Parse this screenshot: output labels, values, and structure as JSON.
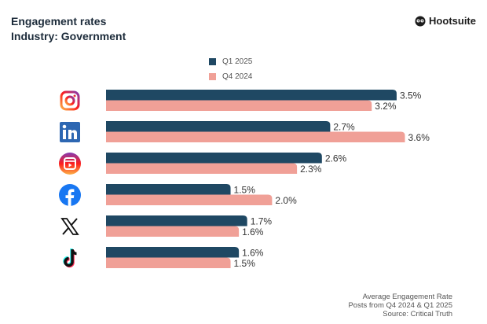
{
  "header": {
    "title": "Engagement rates",
    "subtitle": "Industry: Government",
    "brand": "Hootsuite"
  },
  "footer": {
    "lines": [
      "Average Engagement Rate",
      "Posts from Q4 2024 & Q1 2025",
      "Source: Critical Truth"
    ]
  },
  "chart_data": {
    "type": "bar",
    "orientation": "horizontal",
    "title": "Engagement rates",
    "subtitle": "Industry: Government",
    "categories": [
      "instagram-icon",
      "linkedin-icon",
      "instagram-reels-icon",
      "facebook-icon",
      "x-icon",
      "tiktok-icon"
    ],
    "series": [
      {
        "name": "Q1 2025",
        "color": "#1f4863",
        "values": [
          3.5,
          2.7,
          2.6,
          1.5,
          1.7,
          1.6
        ],
        "labels": [
          "3.5%",
          "2.7%",
          "2.6%",
          "1.5%",
          "1.7%",
          "1.6%"
        ]
      },
      {
        "name": "Q4 2024",
        "color": "#f0a097",
        "values": [
          3.2,
          3.6,
          2.3,
          2.0,
          1.6,
          1.5
        ],
        "labels": [
          "3.2%",
          "3.6%",
          "2.3%",
          "2.0%",
          "1.6%",
          "1.5%"
        ]
      }
    ],
    "xlim": [
      0,
      3.6
    ],
    "grid": false,
    "legend": "top-center"
  }
}
